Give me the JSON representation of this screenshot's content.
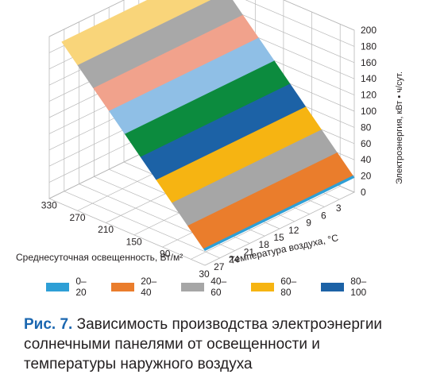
{
  "chart_data": {
    "type": "surface3d",
    "xlabel": "Среднесуточная освещенность, Вт/м²",
    "x_ticks": [
      "90",
      "150",
      "210",
      "270",
      "330"
    ],
    "ylabel": "Температура воздуха, °С",
    "y_ticks": [
      "30",
      "27",
      "24",
      "21",
      "18",
      "15",
      "12",
      "9",
      "6",
      "3"
    ],
    "zlabel": "Электроэнергия, кВт • ч/сут.",
    "z_ticks": [
      "0",
      "20",
      "40",
      "60",
      "80",
      "100",
      "120",
      "140",
      "160",
      "180",
      "200"
    ],
    "xlim": [
      30,
      360
    ],
    "ylim": [
      0,
      30
    ],
    "zlim": [
      0,
      200
    ],
    "surface_model": "energy = 0.6 * illuminance, independent of temperature; peak ≈ 200",
    "color_bands": [
      {
        "range": "0–20",
        "color": "#2e9fd6"
      },
      {
        "range": "20–40",
        "color": "#ea7d2c"
      },
      {
        "range": "40–60",
        "color": "#a6a6a6"
      },
      {
        "range": "60–80",
        "color": "#f6b412"
      },
      {
        "range": "80–100",
        "color": "#1c62a6"
      },
      {
        "range": "100–120",
        "color": "#0c8b3e"
      },
      {
        "range": "120–140",
        "color": "#8fbfe6"
      },
      {
        "range": "140–160",
        "color": "#f1a28c"
      },
      {
        "range": "160–180",
        "color": "#a8a8a8"
      },
      {
        "range": "180–200",
        "color": "#f9d57a"
      }
    ],
    "legend": [
      "0–20",
      "20–40",
      "40–60",
      "60–80",
      "80–100"
    ],
    "legend_placement": "bottom",
    "grid": true
  },
  "caption": {
    "label": "Рис. 7.",
    "text": "Зависимость производства электроэнергии солнечными панелями от освещенности и температуры наружного воздуха"
  }
}
